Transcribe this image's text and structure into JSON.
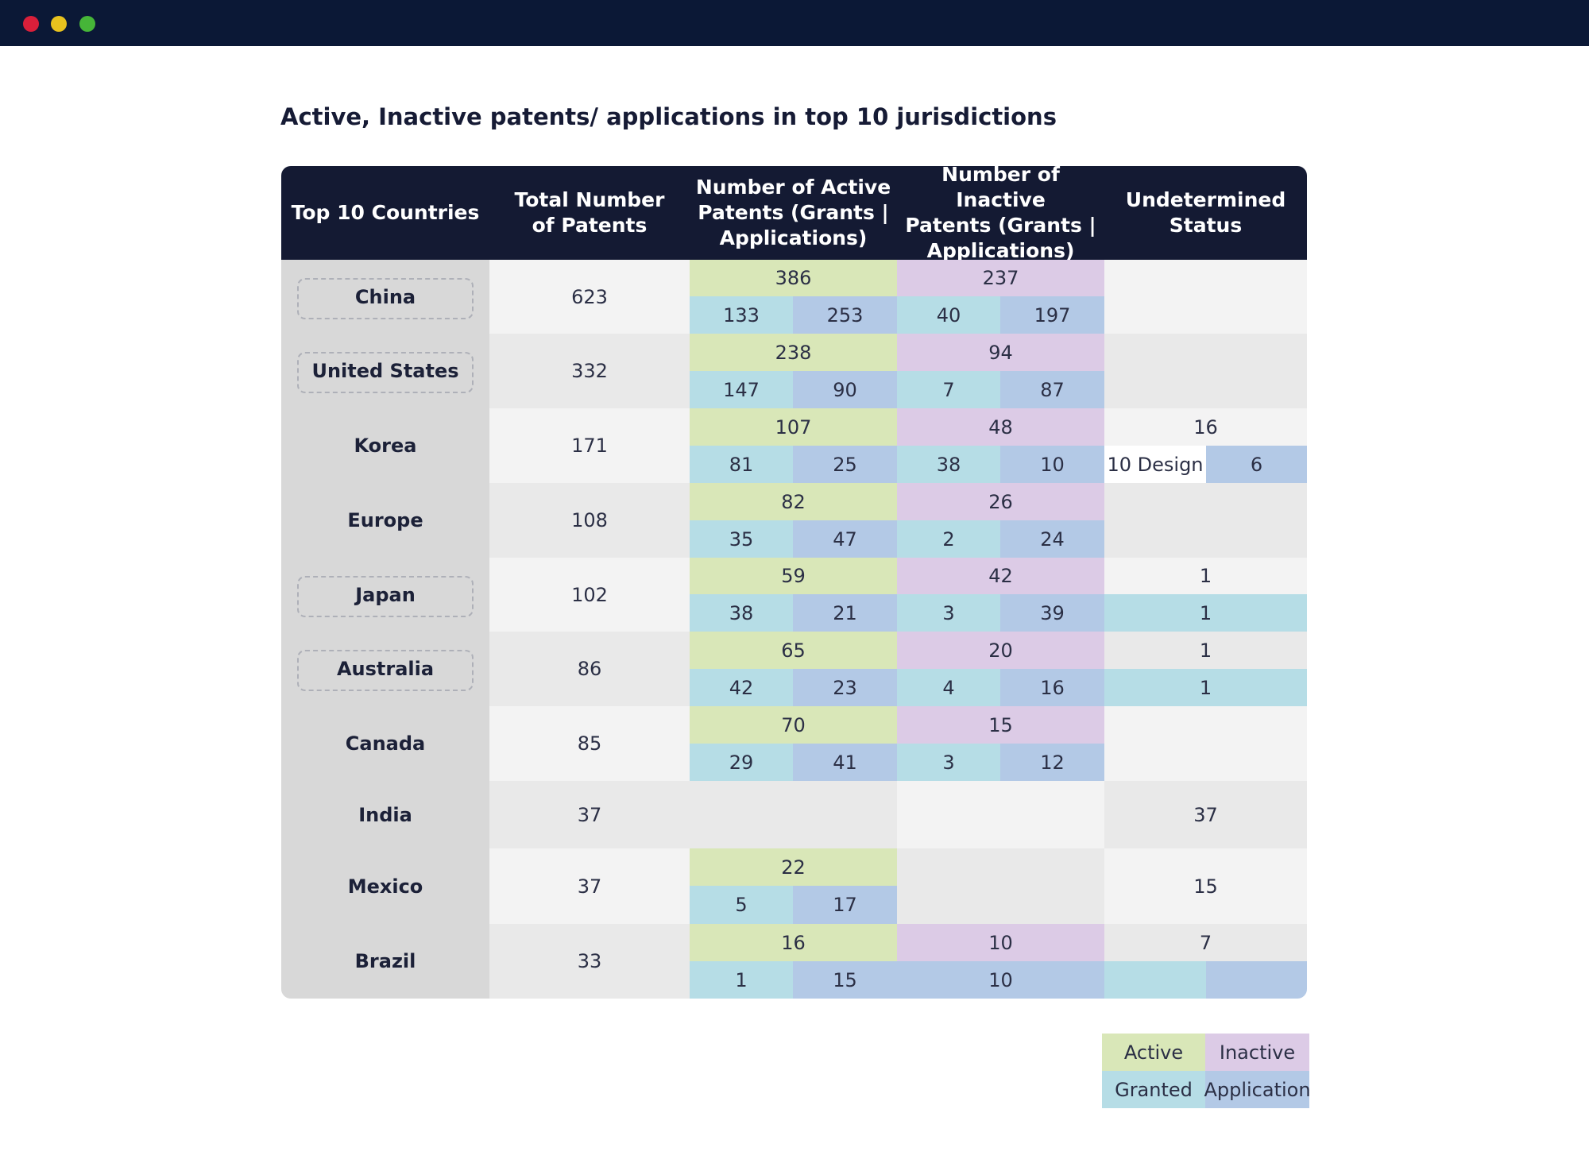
{
  "window": {
    "controls": [
      "close-dot",
      "minimize-dot",
      "zoom-dot"
    ]
  },
  "title": "Active, Inactive patents/ applications in top 10 jurisdictions",
  "headers": {
    "country": "Top 10 Countries",
    "total": "Total Number\nof Patents",
    "active": "Number of Active\nPatents (Grants |\nApplications)",
    "inactive": "Number of Inactive\nPatents (Grants |\nApplications)",
    "undetermined": "Undetermined\nStatus"
  },
  "colors": {
    "header_bg": "#141a33",
    "active": "#d9e7b8",
    "inactive": "#dccbe6",
    "granted": "#b6dde6",
    "application": "#b3c9e6",
    "country_col": "#d8d8d8",
    "row_light": "#f3f3f3",
    "row_dark": "#e9e9e9"
  },
  "rows": [
    {
      "country": "China",
      "boxed": true,
      "total": "623",
      "active": "386",
      "active_granted": "133",
      "active_application": "253",
      "inactive": "237",
      "inactive_granted": "40",
      "inactive_application": "197"
    },
    {
      "country": "United States",
      "boxed": true,
      "total": "332",
      "active": "238",
      "active_granted": "147",
      "active_application": "90",
      "inactive": "94",
      "inactive_granted": "7",
      "inactive_application": "87"
    },
    {
      "country": "Korea",
      "boxed": false,
      "total": "171",
      "active": "107",
      "active_granted": "81",
      "active_application": "25",
      "inactive": "48",
      "inactive_granted": "38",
      "inactive_application": "10",
      "undetermined": "16",
      "undetermined_granted": "10 Design",
      "undetermined_application": "6"
    },
    {
      "country": "Europe",
      "boxed": false,
      "total": "108",
      "active": "82",
      "active_granted": "35",
      "active_application": "47",
      "inactive": "26",
      "inactive_granted": "2",
      "inactive_application": "24"
    },
    {
      "country": "Japan",
      "boxed": true,
      "total": "102",
      "active": "59",
      "active_granted": "38",
      "active_application": "21",
      "inactive": "42",
      "inactive_granted": "3",
      "inactive_application": "39",
      "undetermined": "1",
      "undetermined_sub": "1"
    },
    {
      "country": "Australia",
      "boxed": true,
      "total": "86",
      "active": "65",
      "active_granted": "42",
      "active_application": "23",
      "inactive": "20",
      "inactive_granted": "4",
      "inactive_application": "16",
      "undetermined": "1",
      "undetermined_sub": "1"
    },
    {
      "country": "Canada",
      "boxed": false,
      "total": "85",
      "active": "70",
      "active_granted": "29",
      "active_application": "41",
      "inactive": "15",
      "inactive_granted": "3",
      "inactive_application": "12"
    },
    {
      "country": "India",
      "boxed": false,
      "total": "37",
      "undetermined_single": "37"
    },
    {
      "country": "Mexico",
      "boxed": false,
      "total": "37",
      "active": "22",
      "active_granted": "5",
      "active_application": "17",
      "undetermined_single": "15"
    },
    {
      "country": "Brazil",
      "boxed": false,
      "total": "33",
      "active": "16",
      "active_granted": "1",
      "active_application": "15",
      "inactive": "10",
      "inactive_application": "10",
      "undetermined": "7"
    }
  ],
  "legend": {
    "active": "Active",
    "inactive": "Inactive",
    "granted": "Granted",
    "application": "Application"
  }
}
